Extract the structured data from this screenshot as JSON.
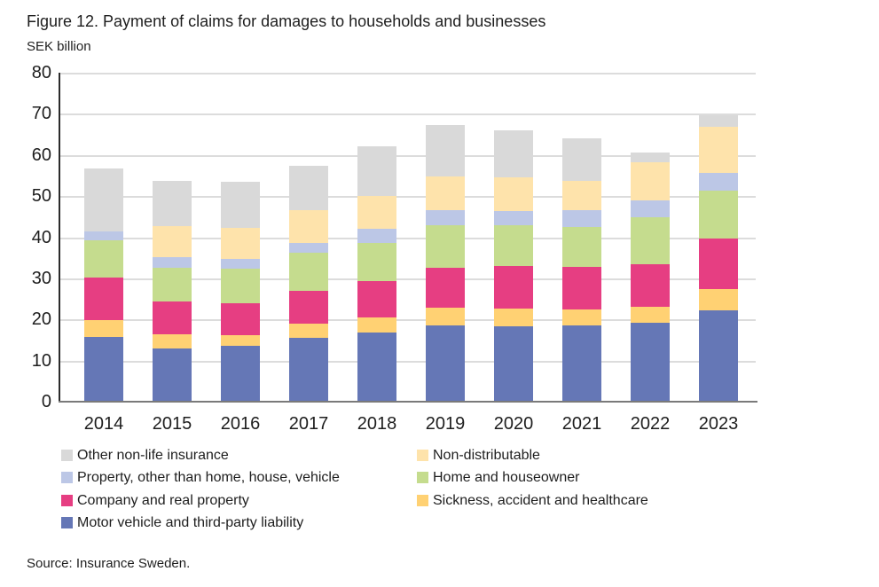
{
  "figure": {
    "title": "Figure 12. Payment of claims for damages to households and businesses",
    "subtitle": "SEK billion",
    "source": "Source: Insurance Sweden."
  },
  "chart_data": {
    "type": "bar",
    "stacked": true,
    "title": "Figure 12. Payment of claims for damages to households and businesses",
    "ylabel": "SEK billion",
    "xlabel": "",
    "ylim": [
      0,
      80
    ],
    "ytick_interval": 10,
    "grid": true,
    "legend_position": "bottom",
    "categories": [
      "2014",
      "2015",
      "2016",
      "2017",
      "2018",
      "2019",
      "2020",
      "2021",
      "2022",
      "2023"
    ],
    "series": [
      {
        "name": "Motor vehicle and third-party liability",
        "color": "#6577b6",
        "values": [
          15.7,
          13.0,
          13.6,
          15.6,
          16.8,
          18.5,
          18.3,
          18.5,
          19.2,
          22.2
        ]
      },
      {
        "name": "Sickness, accident and healthcare",
        "color": "#ffd173",
        "values": [
          4.2,
          3.3,
          2.6,
          3.4,
          3.6,
          4.3,
          4.3,
          3.9,
          3.9,
          5.2
        ]
      },
      {
        "name": "Company and real property",
        "color": "#e63e82",
        "values": [
          10.3,
          8.1,
          7.8,
          8.0,
          9.0,
          9.7,
          10.4,
          10.4,
          10.4,
          12.3
        ]
      },
      {
        "name": "Home and houseowner",
        "color": "#c5dc8e",
        "values": [
          9.0,
          8.2,
          8.3,
          9.2,
          9.3,
          10.5,
          9.9,
          9.7,
          11.3,
          11.7
        ]
      },
      {
        "name": "Property, other than home, house, vehicle",
        "color": "#bcc7e6",
        "values": [
          2.2,
          2.5,
          2.4,
          2.5,
          3.4,
          3.6,
          3.4,
          4.1,
          4.1,
          4.2
        ]
      },
      {
        "name": "Non-distributable",
        "color": "#fee3ab",
        "values": [
          0.0,
          7.7,
          7.6,
          7.8,
          7.9,
          8.1,
          8.2,
          7.2,
          9.4,
          11.3
        ]
      },
      {
        "name": "Other non-life insurance",
        "color": "#d9d9d9",
        "values": [
          15.3,
          10.9,
          11.2,
          10.9,
          12.1,
          12.5,
          11.4,
          10.3,
          2.3,
          2.8
        ]
      }
    ],
    "legend_columns": [
      [
        "Other non-life insurance",
        "Property, other than home, house, vehicle",
        "Company and real property",
        "Motor vehicle and third-party liability"
      ],
      [
        "Non-distributable",
        "Home and houseowner",
        "Sickness, accident and healthcare"
      ]
    ]
  }
}
